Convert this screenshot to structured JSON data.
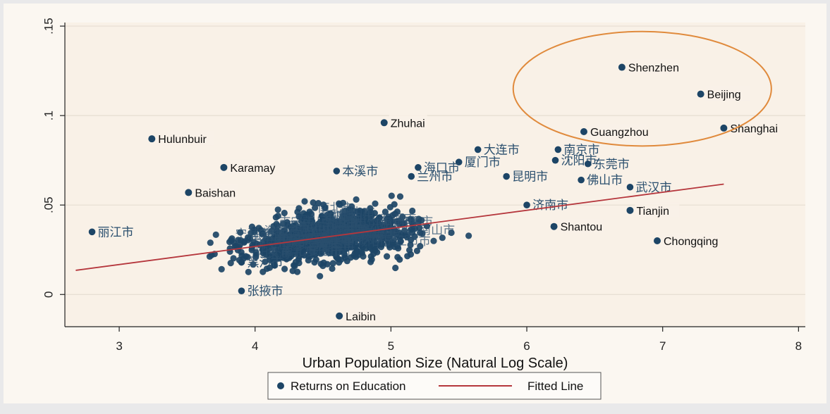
{
  "chart_data": {
    "type": "scatter",
    "title": "",
    "xlabel": "Urban Population Size (Natural Log Scale)",
    "ylabel": "",
    "xlim": [
      2.6,
      8.05
    ],
    "ylim": [
      -0.018,
      0.152
    ],
    "x_ticks": [
      "3",
      "4",
      "5",
      "6",
      "7",
      "8"
    ],
    "x_tick_values": [
      3,
      4,
      5,
      6,
      7,
      8
    ],
    "y_ticks": [
      "0",
      ".05",
      ".1",
      ".15"
    ],
    "y_tick_values": [
      0,
      0.05,
      0.1,
      0.15
    ],
    "grid": "horizontal",
    "legend_position": "bottom",
    "series": [
      {
        "name": "Returns on Education",
        "marker_color": "#1d4566",
        "labeled_points": [
          {
            "x": 6.7,
            "y": 0.127,
            "label": "Shenzhen"
          },
          {
            "x": 7.28,
            "y": 0.112,
            "label": "Beijing"
          },
          {
            "x": 6.42,
            "y": 0.091,
            "label": "Guangzhou"
          },
          {
            "x": 7.45,
            "y": 0.093,
            "label": "Shanghai"
          },
          {
            "x": 4.95,
            "y": 0.096,
            "label": "Zhuhai"
          },
          {
            "x": 3.24,
            "y": 0.087,
            "label": "Hulunbuir"
          },
          {
            "x": 3.77,
            "y": 0.071,
            "label": "Karamay"
          },
          {
            "x": 3.51,
            "y": 0.057,
            "label": "Baishan"
          },
          {
            "x": 6.76,
            "y": 0.047,
            "label": "Tianjin"
          },
          {
            "x": 6.2,
            "y": 0.038,
            "label": "Shantou"
          },
          {
            "x": 6.96,
            "y": 0.03,
            "label": "Chongqing"
          },
          {
            "x": 4.62,
            "y": -0.012,
            "label": "Laibin"
          }
        ],
        "chinese_labeled_points": [
          {
            "x": 5.64,
            "y": 0.081,
            "label": "大连市"
          },
          {
            "x": 6.23,
            "y": 0.081,
            "label": "南京市"
          },
          {
            "x": 6.21,
            "y": 0.075,
            "label": "沈阳市"
          },
          {
            "x": 6.45,
            "y": 0.073,
            "label": "东莞市"
          },
          {
            "x": 5.5,
            "y": 0.074,
            "label": "厦门市"
          },
          {
            "x": 5.2,
            "y": 0.071,
            "label": "海口市"
          },
          {
            "x": 4.6,
            "y": 0.069,
            "label": "本溪市"
          },
          {
            "x": 5.15,
            "y": 0.066,
            "label": "兰州市"
          },
          {
            "x": 5.85,
            "y": 0.066,
            "label": "昆明市"
          },
          {
            "x": 6.4,
            "y": 0.064,
            "label": "佛山市"
          },
          {
            "x": 6.76,
            "y": 0.06,
            "label": "武汉市"
          },
          {
            "x": 6.0,
            "y": 0.05,
            "label": "济南市"
          },
          {
            "x": 3.9,
            "y": 0.018,
            "label": "黑河市"
          },
          {
            "x": 3.9,
            "y": 0.002,
            "label": "张掖市"
          },
          {
            "x": 2.8,
            "y": 0.035,
            "label": "丽江市"
          }
        ]
      },
      {
        "name": "Fitted Line",
        "line_color": "#b5363c",
        "x": [
          2.68,
          7.45
        ],
        "y": [
          0.0135,
          0.0617
        ]
      }
    ],
    "annotations": [
      {
        "type": "ellipse",
        "color": "#e08a3c",
        "center_x": 6.85,
        "center_y": 0.115,
        "radius_x": 0.95,
        "radius_y": 0.032
      }
    ]
  }
}
